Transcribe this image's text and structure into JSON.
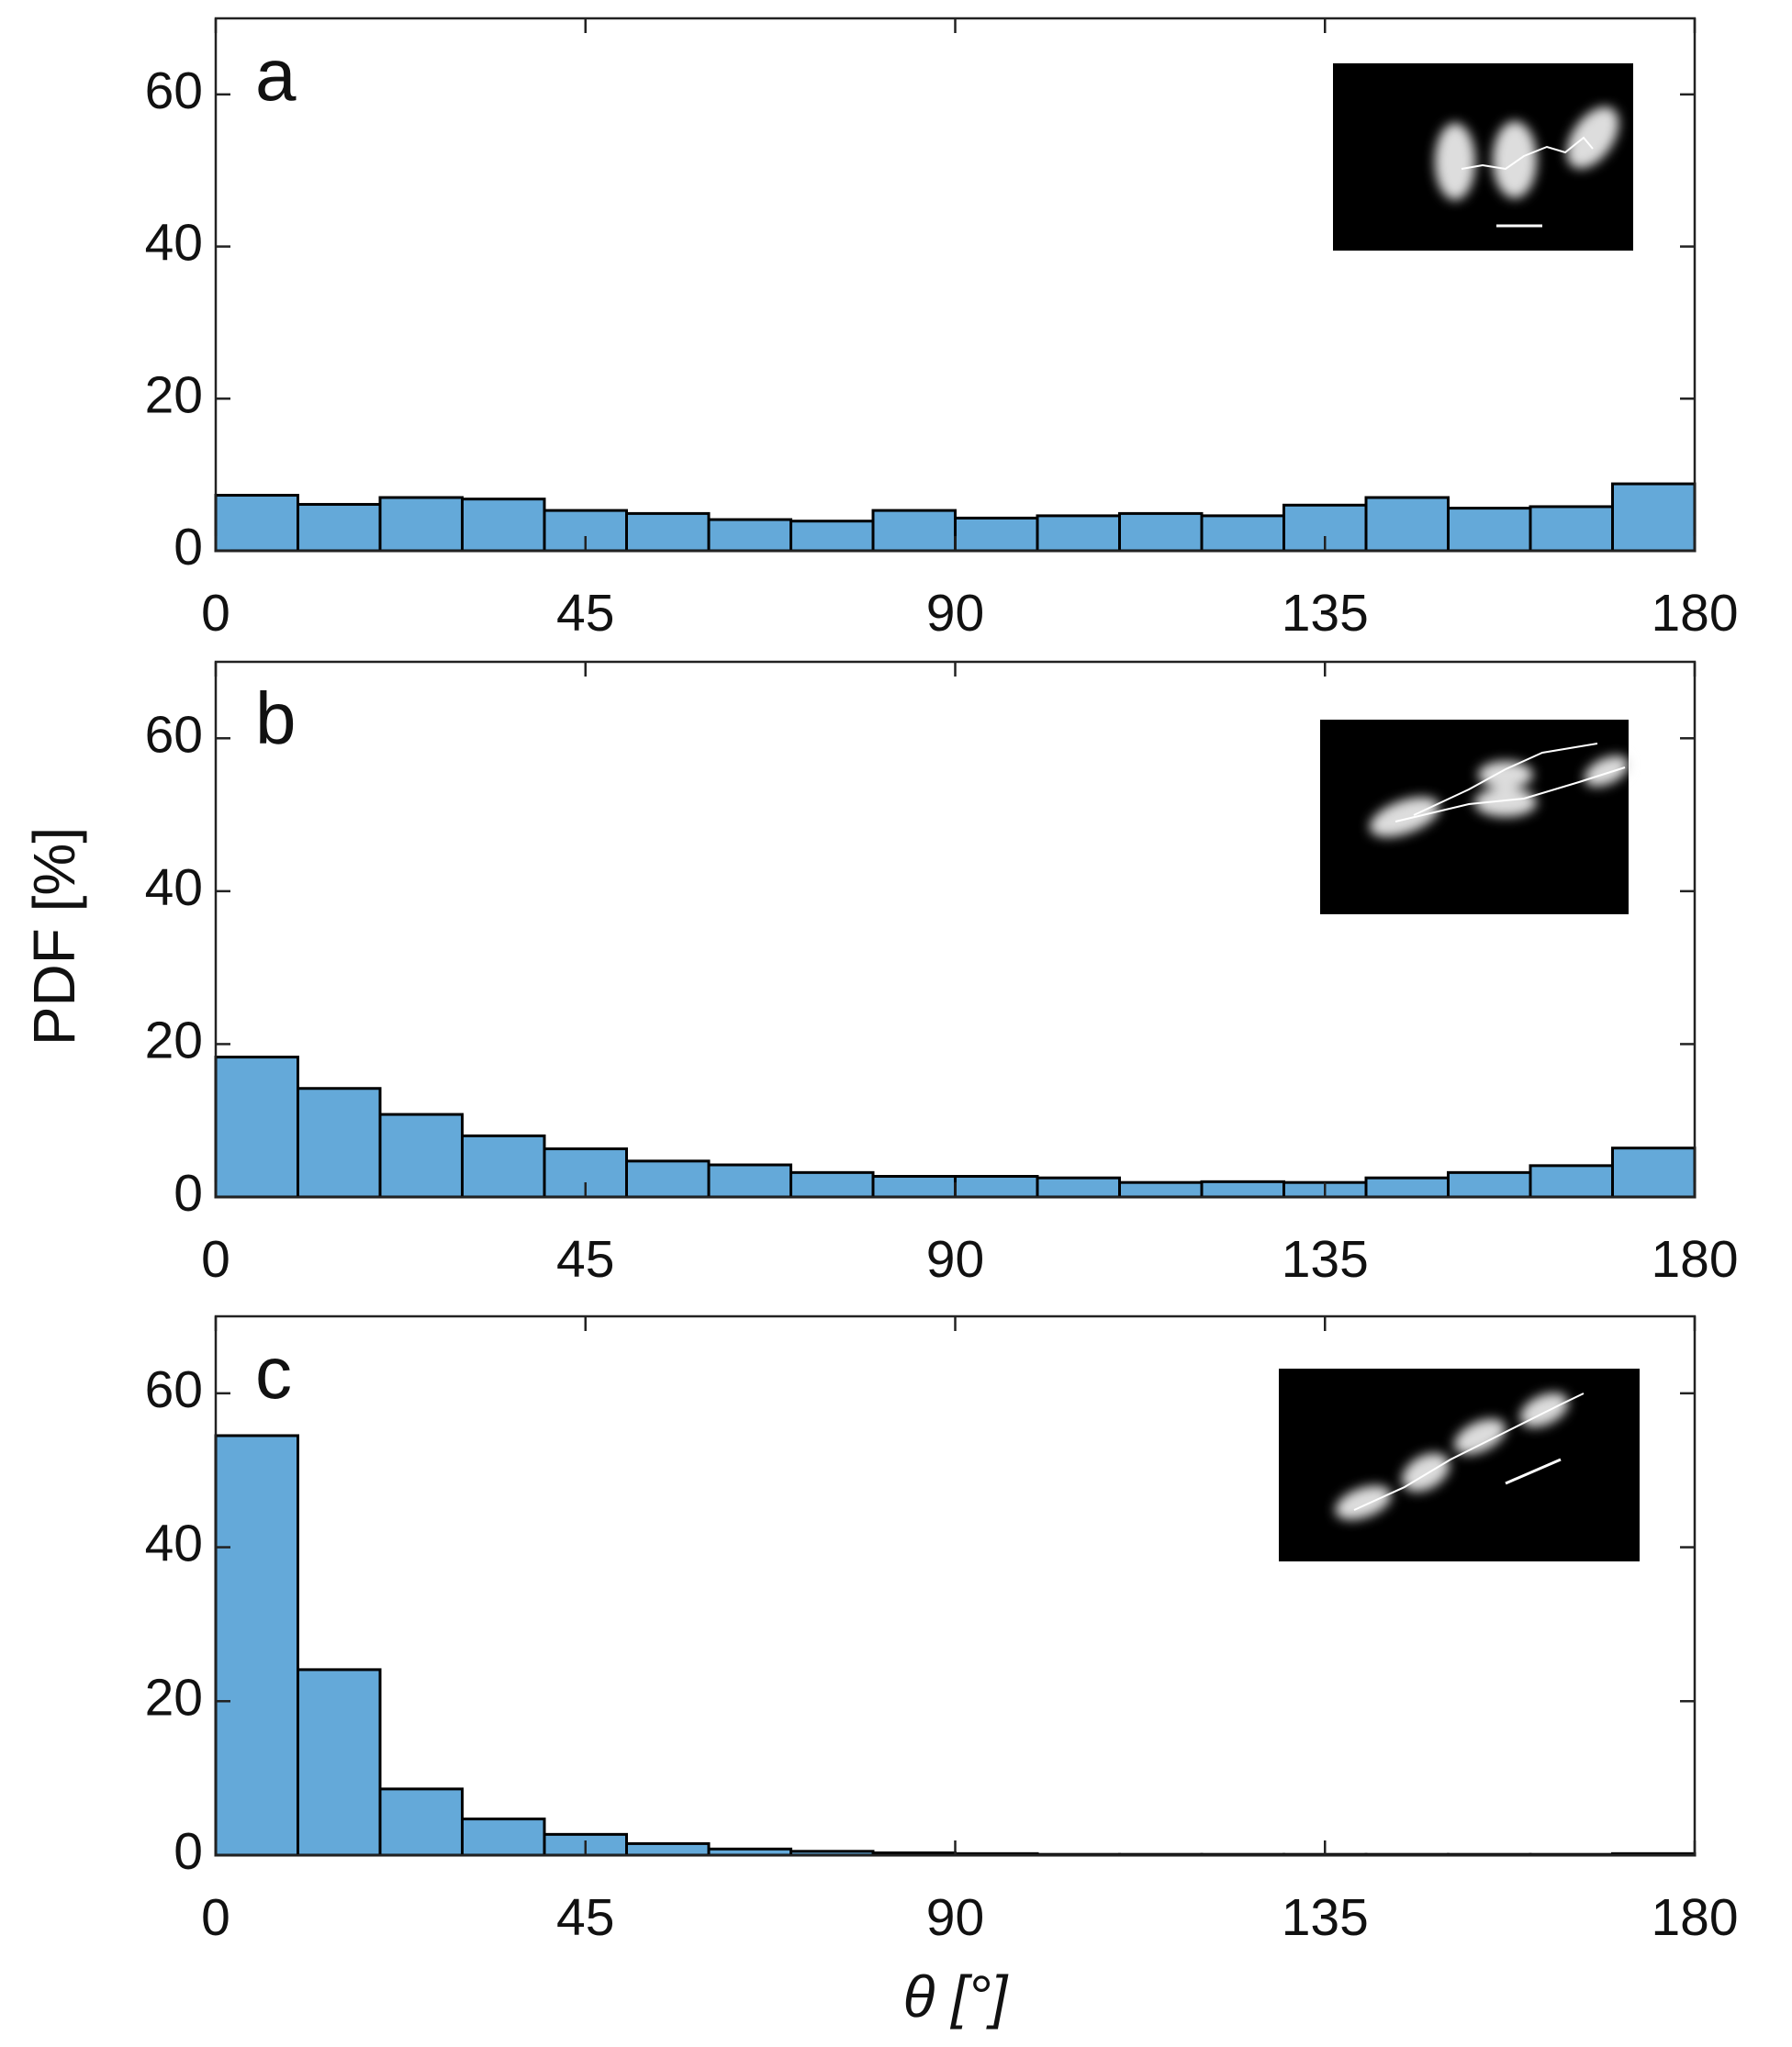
{
  "chart_data": [
    {
      "type": "histogram",
      "panel": "a",
      "color": "#64a9d9",
      "bins": [
        0,
        10,
        20,
        30,
        40,
        50,
        60,
        70,
        80,
        90,
        100,
        110,
        120,
        130,
        140,
        150,
        160,
        170,
        180
      ],
      "values": [
        7.3,
        6.1,
        7.0,
        6.8,
        5.3,
        4.9,
        4.1,
        3.9,
        5.3,
        4.3,
        4.6,
        4.9,
        4.6,
        6.0,
        7.0,
        5.6,
        5.8,
        8.8
      ],
      "xlim": [
        0,
        180
      ],
      "ylim": [
        0,
        70
      ],
      "xticks": [
        0,
        45,
        90,
        135,
        180
      ],
      "yticks": [
        0,
        20,
        40,
        60
      ]
    },
    {
      "type": "histogram",
      "panel": "b",
      "color": "#64a9d9",
      "ylabel": "PDF [%]",
      "bins": [
        0,
        10,
        20,
        30,
        40,
        50,
        60,
        70,
        80,
        90,
        100,
        110,
        120,
        130,
        140,
        150,
        160,
        170,
        180
      ],
      "values": [
        18.3,
        14.2,
        10.8,
        8.0,
        6.3,
        4.7,
        4.2,
        3.2,
        2.7,
        2.7,
        2.5,
        1.9,
        2.0,
        1.9,
        2.5,
        3.2,
        4.1,
        6.4
      ],
      "xlim": [
        0,
        180
      ],
      "ylim": [
        0,
        70
      ],
      "xticks": [
        0,
        45,
        90,
        135,
        180
      ],
      "yticks": [
        0,
        20,
        40,
        60
      ]
    },
    {
      "type": "histogram",
      "panel": "c",
      "color": "#64a9d9",
      "xlabel": "θ [°]",
      "bins": [
        0,
        10,
        20,
        30,
        40,
        50,
        60,
        70,
        80,
        90,
        100,
        110,
        120,
        130,
        140,
        150,
        160,
        170,
        180
      ],
      "values": [
        54.5,
        24.1,
        8.6,
        4.7,
        2.7,
        1.5,
        0.8,
        0.5,
        0.3,
        0.2,
        0.1,
        0.1,
        0.1,
        0.1,
        0.1,
        0.1,
        0.1,
        0.2
      ],
      "xlim": [
        0,
        180
      ],
      "ylim": [
        0,
        70
      ],
      "xticks": [
        0,
        45,
        90,
        135,
        180
      ],
      "yticks": [
        0,
        20,
        40,
        60
      ]
    }
  ]
}
